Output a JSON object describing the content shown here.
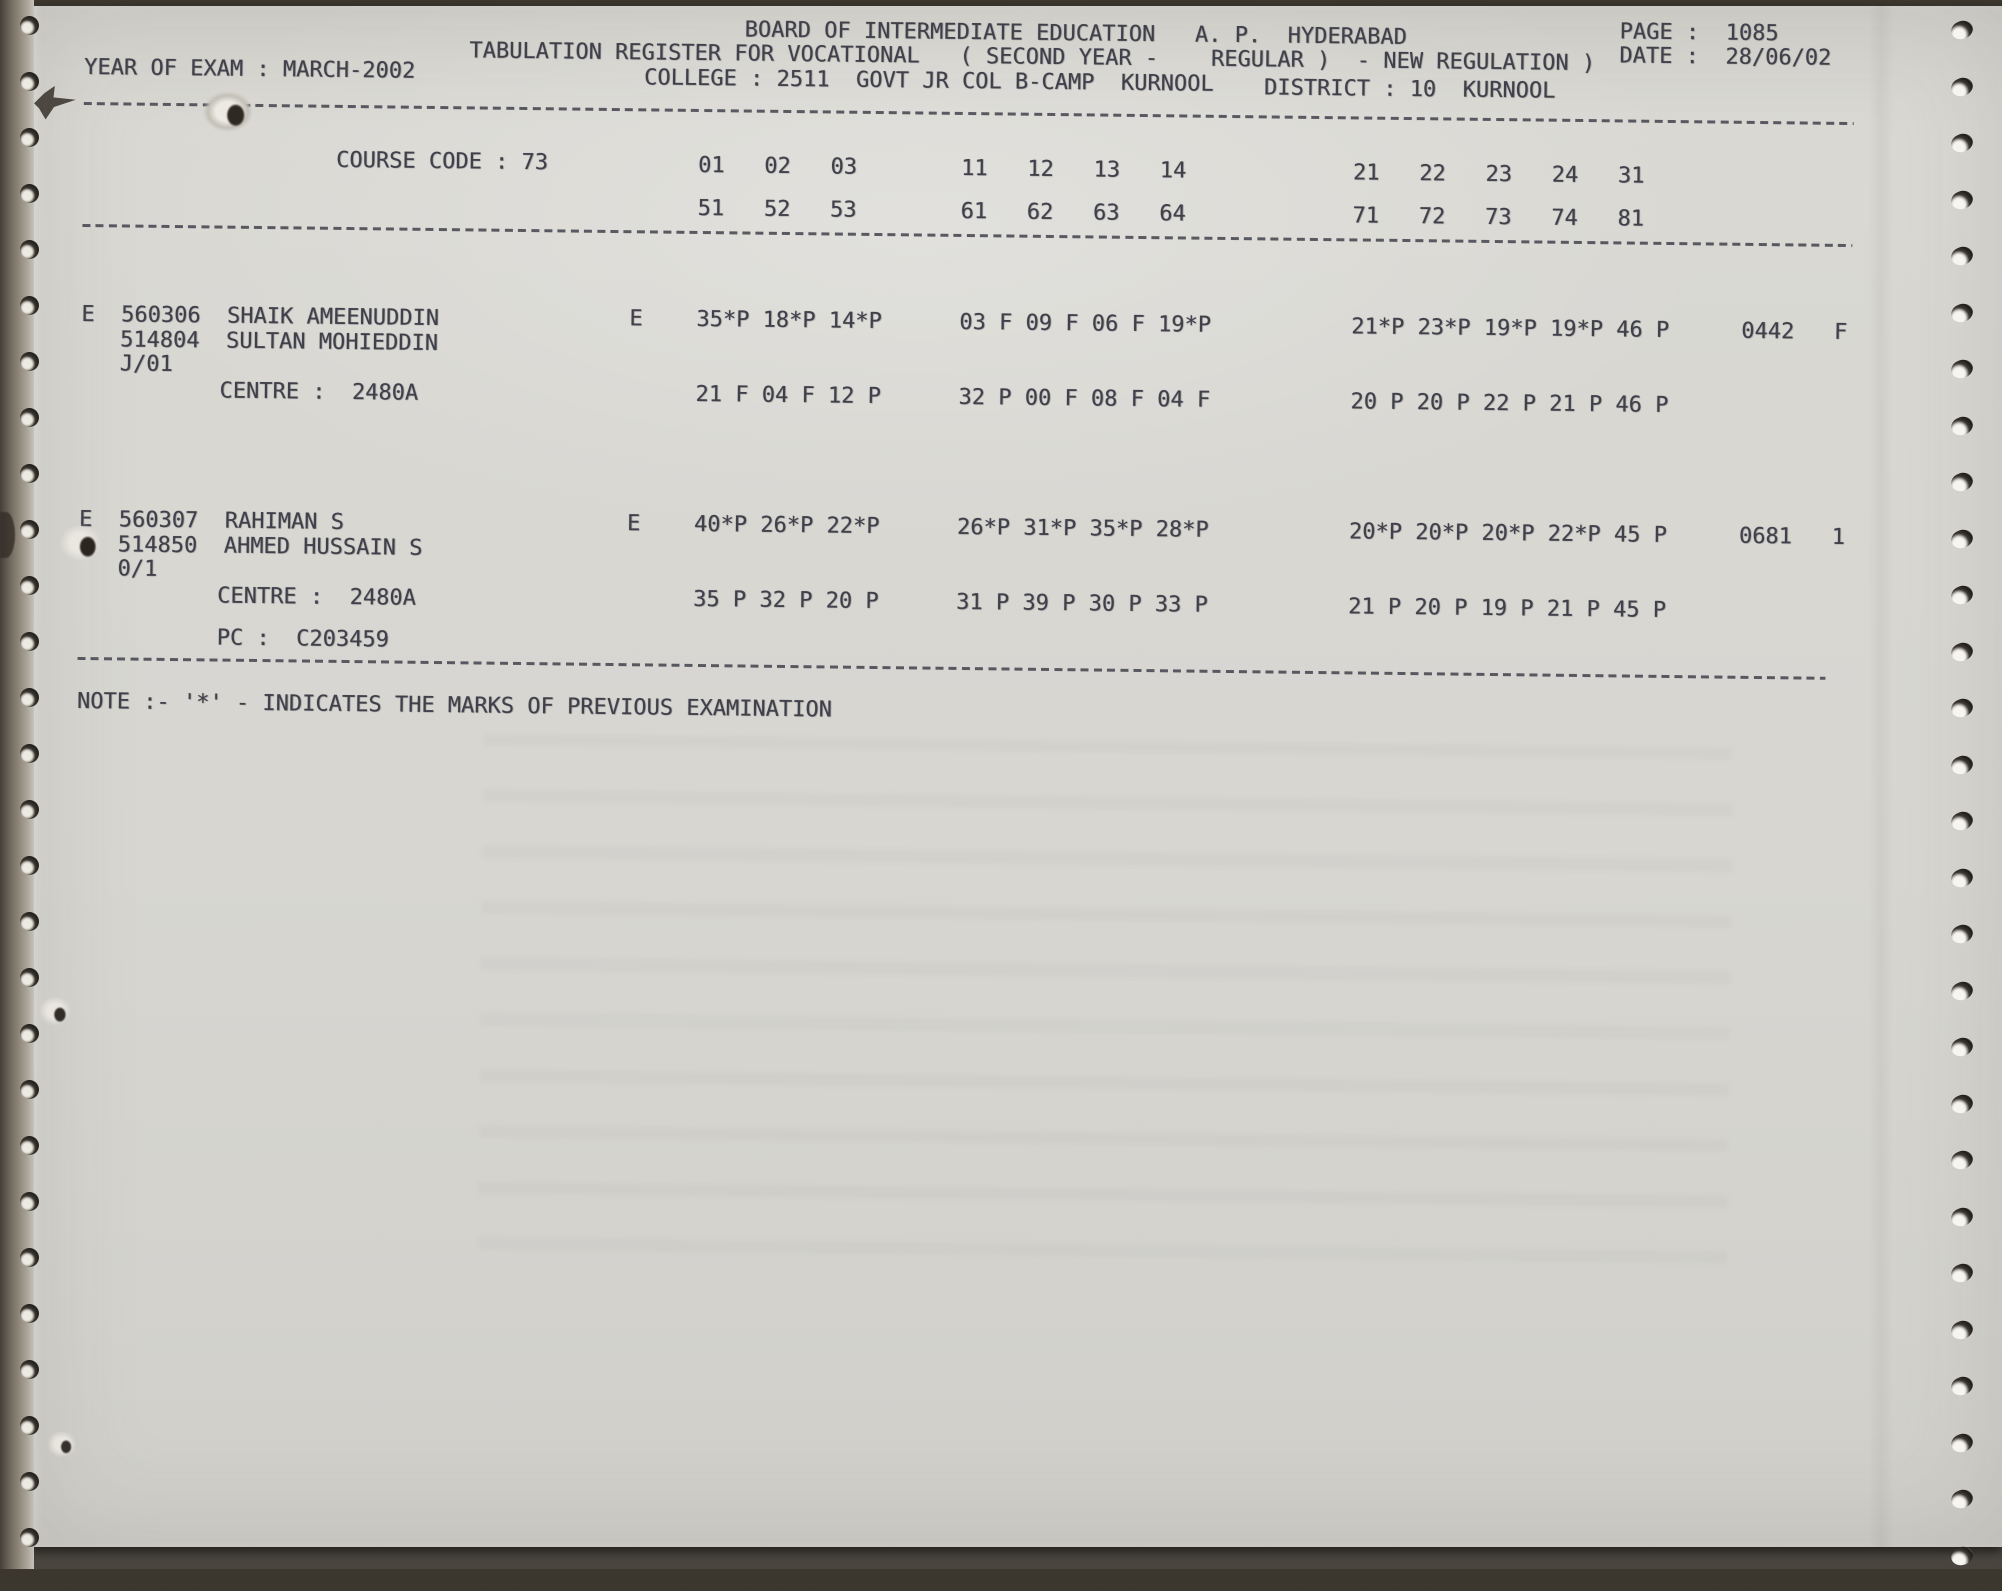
{
  "document": {
    "title_line": "BOARD OF INTERMEDIATE EDUCATION   A. P.  HYDERABAD",
    "page_label": "PAGE :  1085",
    "subtitle_line": "TABULATION REGISTER FOR VOCATIONAL   ( SECOND YEAR -    REGULAR )  - NEW REGULATION )",
    "date_label": "DATE :  28/06/02",
    "year_of_exam": "YEAR OF EXAM : MARCH-2002",
    "college_line": "COLLEGE : 2511  GOVT JR COL B-CAMP  KURNOOL",
    "district_line": "DISTRICT : 10  KURNOOL"
  },
  "course": {
    "code_label": "COURSE CODE : 73",
    "codes_row1": [
      "01   02   03",
      "11   12   13   14",
      "21   22   23   24   31"
    ],
    "codes_row2": [
      "51   52   53",
      "61   62   63   64",
      "71   72   73   74   81"
    ]
  },
  "students": [
    {
      "id_line": "E  560306  SHAIK AMEENUDDIN",
      "parent_line": "514804  SULTAN MOHIEDDIN",
      "suffix": "J/01",
      "medium_flag": "E",
      "marks_row1": [
        "35*P 18*P 14*P",
        "03 F 09 F 06 F 19*P",
        "21*P 23*P 19*P 19*P 46 P"
      ],
      "total": "0442   F",
      "centre_line": "CENTRE :  2480A",
      "marks_row2": [
        "21 F 04 F 12 P",
        "32 P 00 F 08 F 04 F",
        "20 P 20 P 22 P 21 P 46 P"
      ],
      "pc_line": ""
    },
    {
      "id_line": "E  560307  RAHIMAN S",
      "parent_line": "514850  AHMED HUSSAIN S",
      "suffix": "0/1",
      "medium_flag": "E",
      "marks_row1": [
        "40*P 26*P 22*P",
        "26*P 31*P 35*P 28*P",
        "20*P 20*P 20*P 22*P 45 P"
      ],
      "total": "0681   1",
      "centre_line": "CENTRE :  2480A",
      "marks_row2": [
        "35 P 32 P 20 P",
        "31 P 39 P 30 P 33 P",
        "21 P 20 P 19 P 21 P 45 P"
      ],
      "pc_line": "PC :  C203459"
    }
  ],
  "note": "NOTE :- '*' - INDICATES THE MARKS OF PREVIOUS EXAMINATION"
}
